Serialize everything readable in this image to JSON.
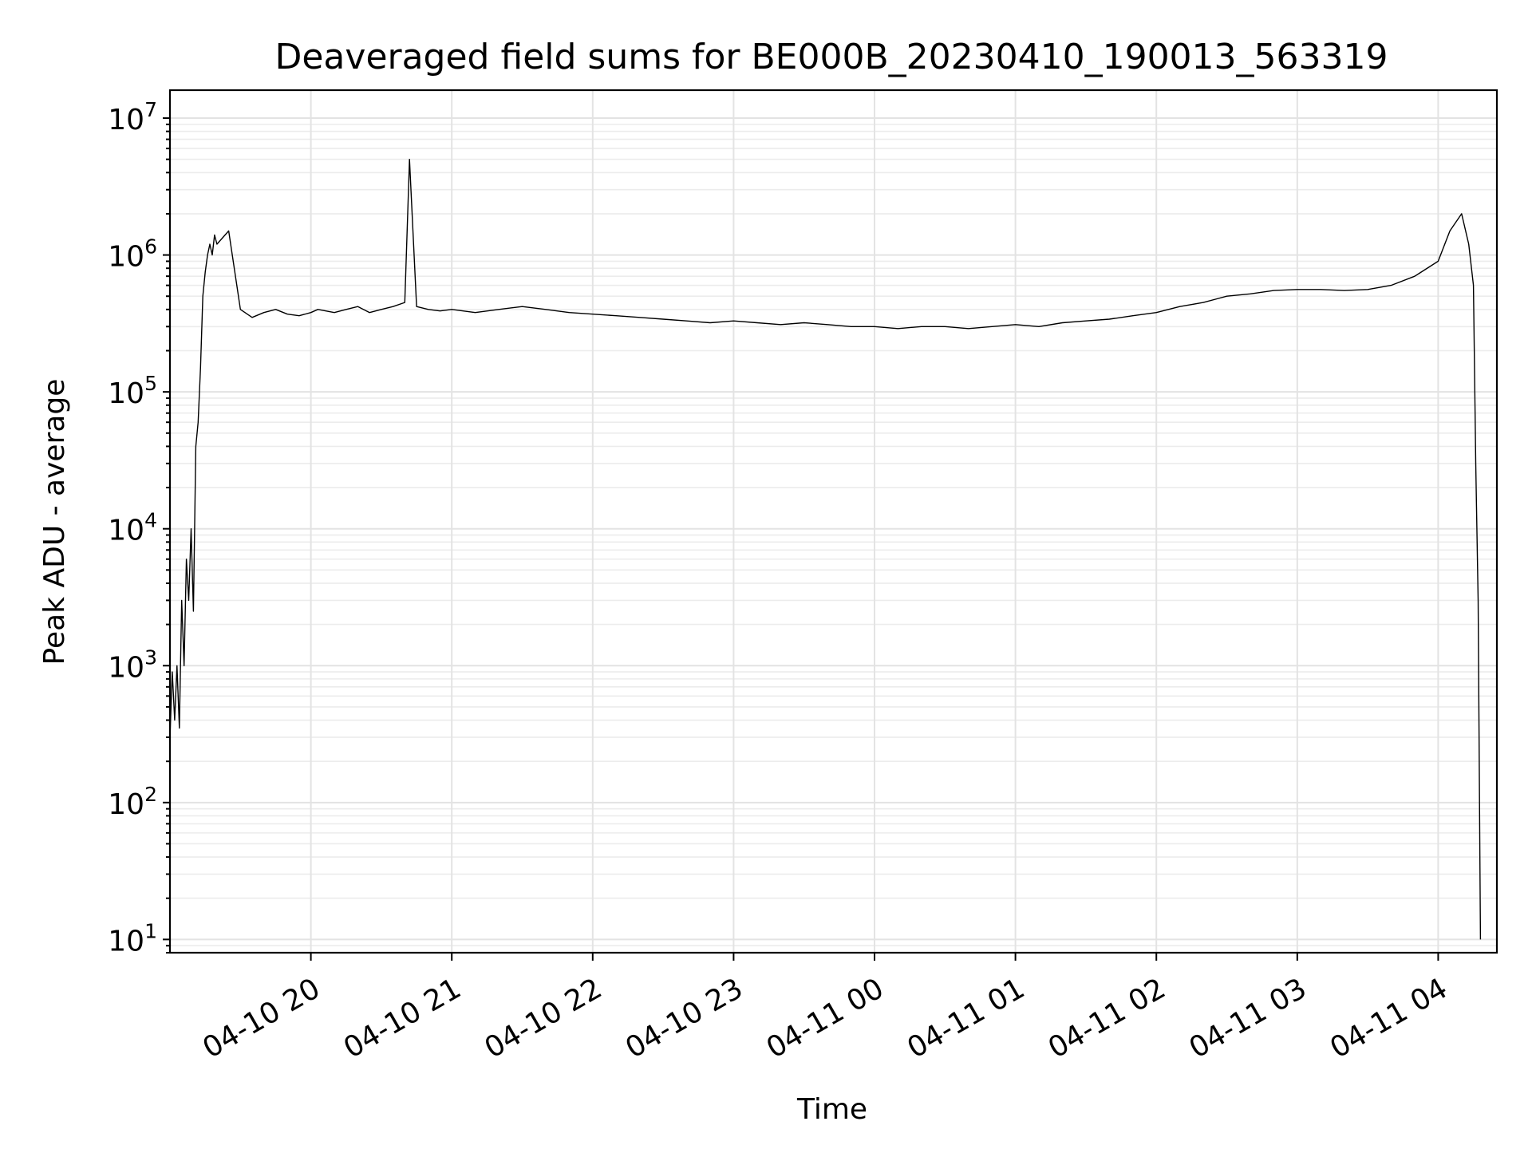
{
  "chart_data": {
    "type": "line",
    "title": "Deaveraged field sums for BE000B_20230410_190013_563319",
    "xlabel": "Time",
    "ylabel": "Peak ADU - average",
    "x_type": "time",
    "xlim": [
      "2023-04-10 19:00",
      "2023-04-11 04:25"
    ],
    "ylim": [
      8,
      16000000
    ],
    "y_scale": "log",
    "y_ticks": [
      {
        "value": 10,
        "base": "10",
        "exp": "1"
      },
      {
        "value": 100,
        "base": "10",
        "exp": "2"
      },
      {
        "value": 1000,
        "base": "10",
        "exp": "3"
      },
      {
        "value": 10000,
        "base": "10",
        "exp": "4"
      },
      {
        "value": 100000,
        "base": "10",
        "exp": "5"
      },
      {
        "value": 1000000,
        "base": "10",
        "exp": "6"
      },
      {
        "value": 10000000,
        "base": "10",
        "exp": "7"
      }
    ],
    "x_ticks": [
      {
        "value": "2023-04-10 20:00",
        "label": "04-10 20"
      },
      {
        "value": "2023-04-10 21:00",
        "label": "04-10 21"
      },
      {
        "value": "2023-04-10 22:00",
        "label": "04-10 22"
      },
      {
        "value": "2023-04-10 23:00",
        "label": "04-10 23"
      },
      {
        "value": "2023-04-11 00:00",
        "label": "04-11 00"
      },
      {
        "value": "2023-04-11 01:00",
        "label": "04-11 01"
      },
      {
        "value": "2023-04-11 02:00",
        "label": "04-11 02"
      },
      {
        "value": "2023-04-11 03:00",
        "label": "04-11 03"
      },
      {
        "value": "2023-04-11 04:00",
        "label": "04-11 04"
      }
    ],
    "grid": true,
    "series": [
      {
        "color": "#000000",
        "x": [
          "2023-04-10 19:00",
          "2023-04-10 19:01",
          "2023-04-10 19:02",
          "2023-04-10 19:03",
          "2023-04-10 19:04",
          "2023-04-10 19:05",
          "2023-04-10 19:06",
          "2023-04-10 19:07",
          "2023-04-10 19:08",
          "2023-04-10 19:09",
          "2023-04-10 19:10",
          "2023-04-10 19:11",
          "2023-04-10 19:12",
          "2023-04-10 19:13",
          "2023-04-10 19:14",
          "2023-04-10 19:15",
          "2023-04-10 19:16",
          "2023-04-10 19:17",
          "2023-04-10 19:18",
          "2023-04-10 19:19",
          "2023-04-10 19:20",
          "2023-04-10 19:25",
          "2023-04-10 19:30",
          "2023-04-10 19:35",
          "2023-04-10 19:40",
          "2023-04-10 19:45",
          "2023-04-10 19:50",
          "2023-04-10 19:55",
          "2023-04-10 20:00",
          "2023-04-10 20:03",
          "2023-04-10 20:10",
          "2023-04-10 20:15",
          "2023-04-10 20:20",
          "2023-04-10 20:25",
          "2023-04-10 20:30",
          "2023-04-10 20:35",
          "2023-04-10 20:40",
          "2023-04-10 20:42",
          "2023-04-10 20:45",
          "2023-04-10 20:50",
          "2023-04-10 20:55",
          "2023-04-10 21:00",
          "2023-04-10 21:10",
          "2023-04-10 21:20",
          "2023-04-10 21:30",
          "2023-04-10 21:40",
          "2023-04-10 21:50",
          "2023-04-10 22:00",
          "2023-04-10 22:10",
          "2023-04-10 22:20",
          "2023-04-10 22:30",
          "2023-04-10 22:40",
          "2023-04-10 22:50",
          "2023-04-10 23:00",
          "2023-04-10 23:10",
          "2023-04-10 23:20",
          "2023-04-10 23:30",
          "2023-04-10 23:40",
          "2023-04-10 23:50",
          "2023-04-11 00:00",
          "2023-04-11 00:10",
          "2023-04-11 00:20",
          "2023-04-11 00:30",
          "2023-04-11 00:40",
          "2023-04-11 00:50",
          "2023-04-11 01:00",
          "2023-04-11 01:10",
          "2023-04-11 01:20",
          "2023-04-11 01:30",
          "2023-04-11 01:40",
          "2023-04-11 01:50",
          "2023-04-11 02:00",
          "2023-04-11 02:10",
          "2023-04-11 02:20",
          "2023-04-11 02:30",
          "2023-04-11 02:40",
          "2023-04-11 02:50",
          "2023-04-11 03:00",
          "2023-04-11 03:10",
          "2023-04-11 03:20",
          "2023-04-11 03:30",
          "2023-04-11 03:40",
          "2023-04-11 03:50",
          "2023-04-11 04:00",
          "2023-04-11 04:05",
          "2023-04-11 04:10",
          "2023-04-11 04:13",
          "2023-04-11 04:15",
          "2023-04-11 04:16",
          "2023-04-11 04:17",
          "2023-04-11 04:18"
        ],
        "y": [
          300,
          900,
          400,
          1000,
          350,
          3000,
          1000,
          6000,
          3000,
          10000,
          2500,
          40000,
          60000,
          150000,
          500000,
          750000,
          1000000,
          1200000,
          1000000,
          1400000,
          1200000,
          1500000,
          400000,
          350000,
          380000,
          400000,
          370000,
          360000,
          380000,
          400000,
          380000,
          400000,
          420000,
          380000,
          400000,
          420000,
          450000,
          5000000,
          420000,
          400000,
          390000,
          400000,
          380000,
          400000,
          420000,
          400000,
          380000,
          370000,
          360000,
          350000,
          340000,
          330000,
          320000,
          330000,
          320000,
          310000,
          320000,
          310000,
          300000,
          300000,
          290000,
          300000,
          300000,
          290000,
          300000,
          310000,
          300000,
          320000,
          330000,
          340000,
          360000,
          380000,
          420000,
          450000,
          500000,
          520000,
          550000,
          560000,
          560000,
          550000,
          560000,
          600000,
          700000,
          900000,
          1500000,
          2000000,
          1200000,
          600000,
          30000,
          3000,
          10
        ]
      }
    ]
  }
}
